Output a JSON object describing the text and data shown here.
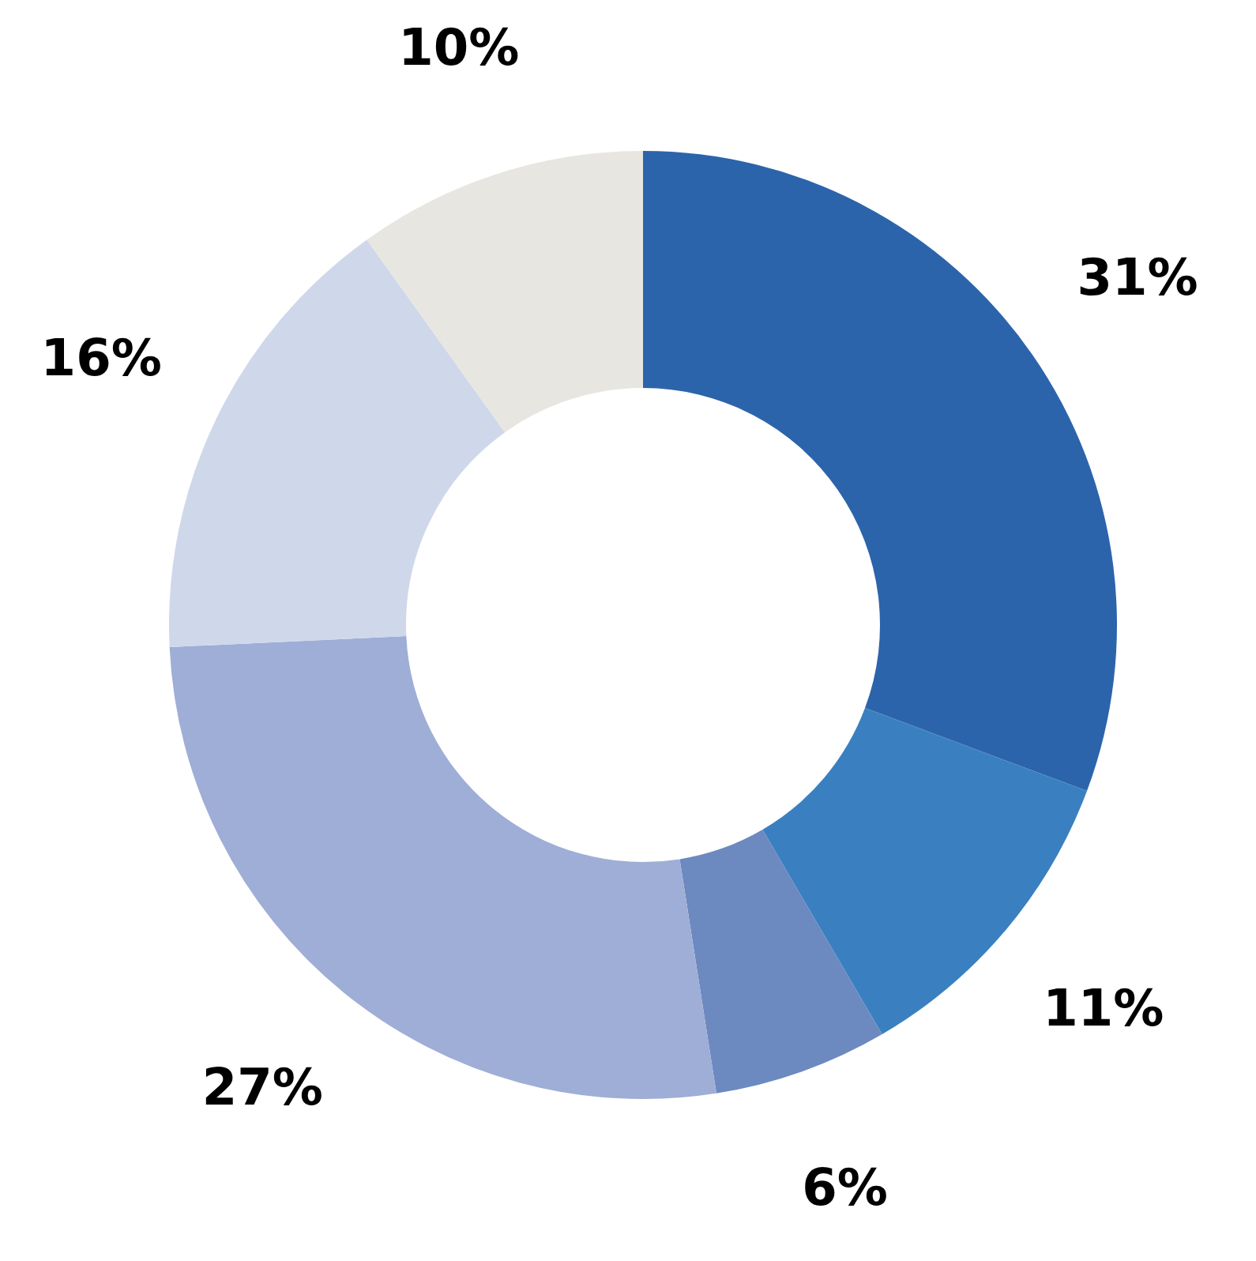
{
  "chart_data": {
    "type": "donut",
    "categories": [
      null,
      null,
      null,
      null,
      null,
      null
    ],
    "values": [
      31,
      11,
      6,
      27,
      16,
      10
    ],
    "colors": [
      "#2c64ab",
      "#3a80c0",
      "#6c89c0",
      "#9faed6",
      "#cfd8ea",
      "#e8e6e1"
    ],
    "value_labels": [
      "31%",
      "11%",
      "6%",
      "27%",
      "16%",
      "10%"
    ],
    "legend": false
  }
}
